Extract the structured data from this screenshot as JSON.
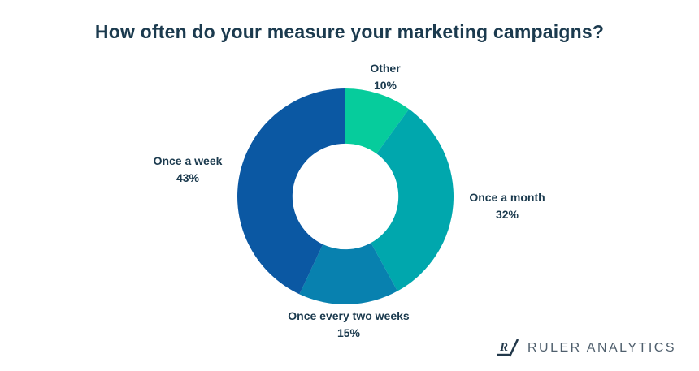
{
  "chart_data": {
    "type": "pie",
    "subtype": "donut",
    "title": "How often do your measure your marketing campaigns?",
    "start_angle_deg": -90,
    "direction": "clockwise",
    "inner_radius_ratio": 0.49,
    "legend_position": "labels-around-chart",
    "slices": [
      {
        "label": "Other",
        "value": 10,
        "pct_label": "10%",
        "color": "#06cc9c"
      },
      {
        "label": "Once a month",
        "value": 32,
        "pct_label": "32%",
        "color": "#00a7ad"
      },
      {
        "label": "Once every two weeks",
        "value": 15,
        "pct_label": "15%",
        "color": "#0881af"
      },
      {
        "label": "Once a week",
        "value": 43,
        "pct_label": "43%",
        "color": "#0b58a3"
      }
    ]
  },
  "branding": {
    "logo_mark": "R",
    "logo_text": "RULER ANALYTICS"
  },
  "colors": {
    "background": "#ffffff",
    "title_text": "#1b3a4e",
    "label_text": "#1b3a4e",
    "logo_text": "#4f5f6d",
    "logo_mark": "#22384a"
  }
}
